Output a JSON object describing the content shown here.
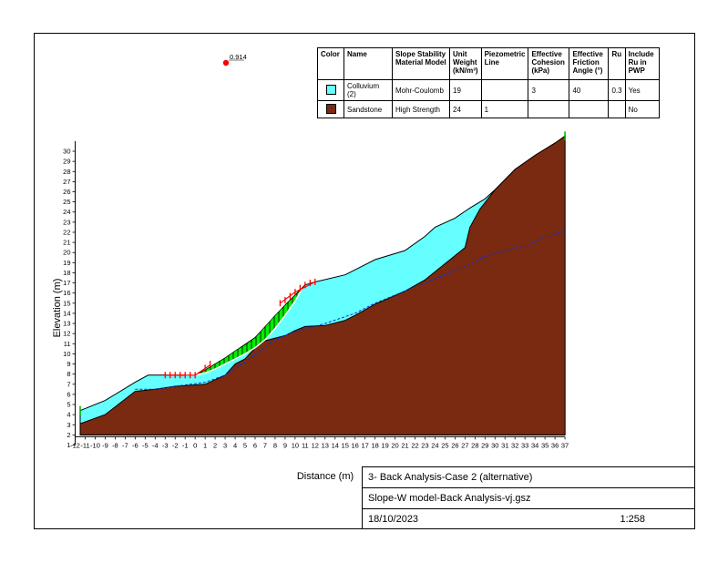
{
  "materials_table": {
    "headers": [
      "Color",
      "Name",
      "Slope Stability Material Model",
      "Unit Weight (kN/m³)",
      "Piezometric Line",
      "Effective Cohesion (kPa)",
      "Effective Friction Angle (°)",
      "Ru",
      "Include Ru in PWP"
    ],
    "rows": [
      {
        "color": "#66ffff",
        "name": "Colluvium (2)",
        "model": "Mohr-Coulomb",
        "unit_weight": "19",
        "piezometric": "",
        "cohesion": "3",
        "friction": "40",
        "ru": "0.3",
        "include_ru": "Yes"
      },
      {
        "color": "#7a2a10",
        "name": "Sandstone",
        "model": "High Strength",
        "unit_weight": "24",
        "piezometric": "1",
        "cohesion": "",
        "friction": "",
        "ru": "",
        "include_ru": "No"
      }
    ]
  },
  "factor_of_safety": "0.914",
  "axes": {
    "ylabel": "Elevation (m)",
    "xlabel": "Distance (m)",
    "x_ticks": [
      "-12",
      "-11",
      "-10",
      "-9",
      "-8",
      "-7",
      "-6",
      "-5",
      "-4",
      "-3",
      "-2",
      "-1",
      "0",
      "1",
      "2",
      "3",
      "4",
      "5",
      "6",
      "7",
      "8",
      "9",
      "10",
      "11",
      "12",
      "13",
      "14",
      "15",
      "16",
      "17",
      "18",
      "19",
      "20",
      "21",
      "22",
      "23",
      "24",
      "25",
      "26",
      "27",
      "28",
      "29",
      "30",
      "31",
      "32",
      "33",
      "34",
      "35",
      "36",
      "37"
    ],
    "y_ticks": [
      "1",
      "2",
      "3",
      "4",
      "5",
      "6",
      "7",
      "8",
      "9",
      "10",
      "11",
      "12",
      "13",
      "14",
      "15",
      "16",
      "17",
      "18",
      "19",
      "20",
      "21",
      "22",
      "23",
      "24",
      "25",
      "26",
      "27",
      "28",
      "29",
      "30"
    ],
    "x_range": [
      -12,
      37
    ],
    "y_range": [
      1,
      31
    ]
  },
  "title_block": {
    "title": "3- Back Analysis-Case 2 (alternative)",
    "file": "Slope-W model-Back Analysis-vj.gsz",
    "date": "18/10/2023",
    "scale": "1:258"
  },
  "colors": {
    "colluvium": "#66ffff",
    "sandstone": "#7a2a10",
    "slip_mass": "#00ee00",
    "slip_marker": "#ff0000",
    "piezometric_line": "#1030d0"
  },
  "geometry": {
    "ground_surface": [
      [
        -11.5,
        4.4
      ],
      [
        -9,
        5.4
      ],
      [
        -6,
        7.2
      ],
      [
        -4.7,
        7.9
      ],
      [
        -3,
        7.9
      ],
      [
        0,
        7.9
      ],
      [
        1,
        8.4
      ],
      [
        3,
        9.6
      ],
      [
        6,
        11.6
      ],
      [
        9,
        14.8
      ],
      [
        11,
        16.8
      ],
      [
        12,
        17.1
      ],
      [
        15,
        17.8
      ],
      [
        17,
        18.8
      ],
      [
        18,
        19.3
      ],
      [
        21,
        20.2
      ],
      [
        23,
        21.6
      ],
      [
        24,
        22.5
      ],
      [
        26,
        23.4
      ],
      [
        27.5,
        24.4
      ],
      [
        29,
        25.3
      ],
      [
        30,
        26.2
      ],
      [
        32,
        28.2
      ],
      [
        34,
        29.6
      ],
      [
        36,
        30.8
      ],
      [
        37,
        31.5
      ]
    ],
    "sandstone_surface": [
      [
        -11.5,
        3.1
      ],
      [
        -9,
        4.0
      ],
      [
        -6,
        6.3
      ],
      [
        -4,
        6.5
      ],
      [
        -2,
        6.8
      ],
      [
        1,
        7.0
      ],
      [
        3,
        7.9
      ],
      [
        4,
        9.0
      ],
      [
        5,
        9.5
      ],
      [
        6,
        10.6
      ],
      [
        7,
        11.3
      ],
      [
        9,
        11.8
      ],
      [
        10,
        12.3
      ],
      [
        11,
        12.7
      ],
      [
        13,
        12.8
      ],
      [
        15,
        13.3
      ],
      [
        16,
        13.8
      ],
      [
        18,
        14.9
      ],
      [
        21,
        16.2
      ],
      [
        23,
        17.3
      ],
      [
        24.5,
        18.5
      ],
      [
        26,
        19.7
      ],
      [
        27,
        20.5
      ],
      [
        27.5,
        22.5
      ],
      [
        28.5,
        24.3
      ],
      [
        30,
        26.2
      ]
    ],
    "piezometric_line": [
      [
        -6,
        6.5
      ],
      [
        -4,
        6.5
      ],
      [
        -2,
        6.8
      ],
      [
        1,
        7.2
      ],
      [
        3,
        7.9
      ],
      [
        5,
        9.2
      ],
      [
        8,
        11.4
      ],
      [
        10,
        12.2
      ],
      [
        13,
        13.0
      ],
      [
        16,
        14.0
      ],
      [
        18,
        15.0
      ],
      [
        21,
        16.2
      ],
      [
        24,
        17.4
      ],
      [
        27,
        18.7
      ],
      [
        29,
        19.6
      ],
      [
        33,
        20.7
      ],
      [
        37,
        22.2
      ]
    ],
    "slip_top": [
      [
        -1,
        7.9
      ],
      [
        0,
        7.9
      ],
      [
        1,
        8.4
      ],
      [
        2,
        9.0
      ],
      [
        3,
        9.6
      ],
      [
        4,
        10.3
      ],
      [
        5,
        10.9
      ],
      [
        6,
        11.6
      ],
      [
        7,
        12.7
      ],
      [
        8,
        13.8
      ],
      [
        9,
        14.8
      ],
      [
        10,
        15.8
      ],
      [
        10.6,
        16.3
      ]
    ],
    "slip_base": [
      [
        -1,
        7.9
      ],
      [
        0,
        7.9
      ],
      [
        1,
        8.1
      ],
      [
        2,
        8.5
      ],
      [
        3,
        9.0
      ],
      [
        4,
        9.5
      ],
      [
        5,
        10.0
      ],
      [
        6,
        10.6
      ],
      [
        7,
        11.4
      ],
      [
        8,
        12.5
      ],
      [
        9,
        13.8
      ],
      [
        10,
        15.2
      ],
      [
        10.6,
        16.3
      ]
    ]
  }
}
